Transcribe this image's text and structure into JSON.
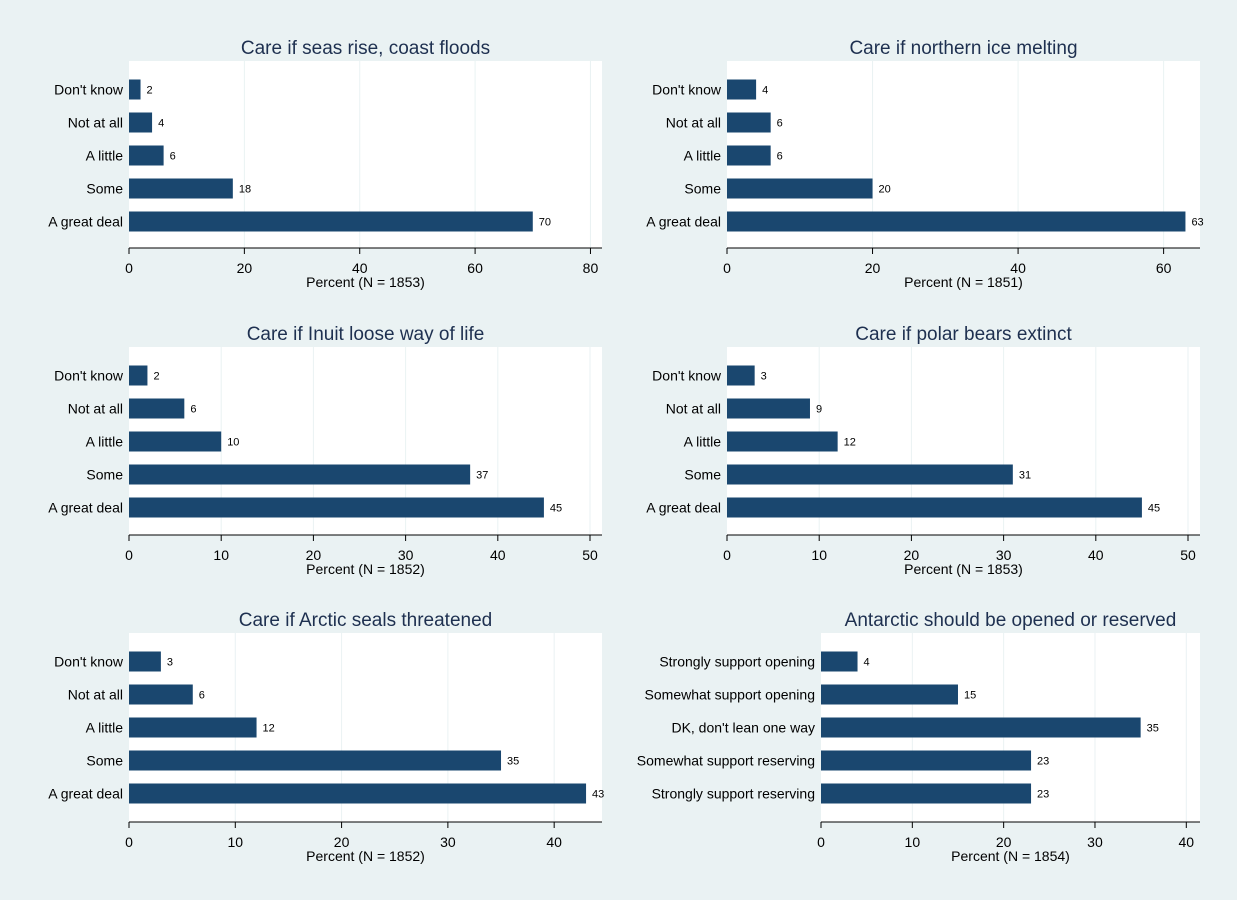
{
  "colors": {
    "background": "#eaf2f3",
    "plot_area": "#ffffff",
    "bar": "#1a476f",
    "gridline": "#eaf2f3",
    "text": "#000000",
    "title": "#1e3050"
  },
  "chart_data": [
    {
      "type": "bar",
      "orientation": "horizontal",
      "title": "Care if seas rise, coast floods",
      "xlabel": "Percent  (N = 1853)",
      "categories": [
        "Don't know",
        "Not at all",
        "A little",
        "Some",
        "A great deal"
      ],
      "values": [
        2,
        4,
        6,
        18,
        70
      ],
      "xlim": [
        0,
        82
      ],
      "xticks": [
        0,
        20,
        40,
        60,
        80
      ],
      "grid": true
    },
    {
      "type": "bar",
      "orientation": "horizontal",
      "title": "Care if northern ice melting",
      "xlabel": "Percent  (N = 1851)",
      "categories": [
        "Don't know",
        "Not at all",
        "A little",
        "Some",
        "A great deal"
      ],
      "values": [
        4,
        6,
        6,
        20,
        63
      ],
      "xlim": [
        0,
        65
      ],
      "xticks": [
        0,
        20,
        40,
        60
      ],
      "grid": true
    },
    {
      "type": "bar",
      "orientation": "horizontal",
      "title": "Care if Inuit loose way of life",
      "xlabel": "Percent  (N = 1852)",
      "categories": [
        "Don't know",
        "Not at all",
        "A little",
        "Some",
        "A great deal"
      ],
      "values": [
        2,
        6,
        10,
        37,
        45
      ],
      "xlim": [
        0,
        51.3
      ],
      "xticks": [
        0,
        10,
        20,
        30,
        40,
        50
      ],
      "grid": true
    },
    {
      "type": "bar",
      "orientation": "horizontal",
      "title": "Care if polar bears extinct",
      "xlabel": "Percent  (N = 1853)",
      "categories": [
        "Don't know",
        "Not at all",
        "A little",
        "Some",
        "A great deal"
      ],
      "values": [
        3,
        9,
        12,
        31,
        45
      ],
      "xlim": [
        0,
        51.3
      ],
      "xticks": [
        0,
        10,
        20,
        30,
        40,
        50
      ],
      "grid": true
    },
    {
      "type": "bar",
      "orientation": "horizontal",
      "title": "Care if Arctic seals threatened",
      "xlabel": "Percent  (N = 1852)",
      "categories": [
        "Don't know",
        "Not at all",
        "A little",
        "Some",
        "A great deal"
      ],
      "values": [
        3,
        6,
        12,
        35,
        43
      ],
      "xlim": [
        0,
        44.5
      ],
      "xticks": [
        0,
        10,
        20,
        30,
        40
      ],
      "grid": true
    },
    {
      "type": "bar",
      "orientation": "horizontal",
      "title": "Antarctic should be opened or reserved",
      "xlabel": "Percent  (N = 1854)",
      "categories": [
        "Strongly support opening",
        "Somewhat support opening",
        "DK, don't lean one way",
        "Somewhat support reserving",
        "Strongly support reserving"
      ],
      "values": [
        4,
        15,
        35,
        23,
        23
      ],
      "xlim": [
        0,
        41.5
      ],
      "xticks": [
        0,
        10,
        20,
        30,
        40
      ],
      "grid": true
    }
  ]
}
